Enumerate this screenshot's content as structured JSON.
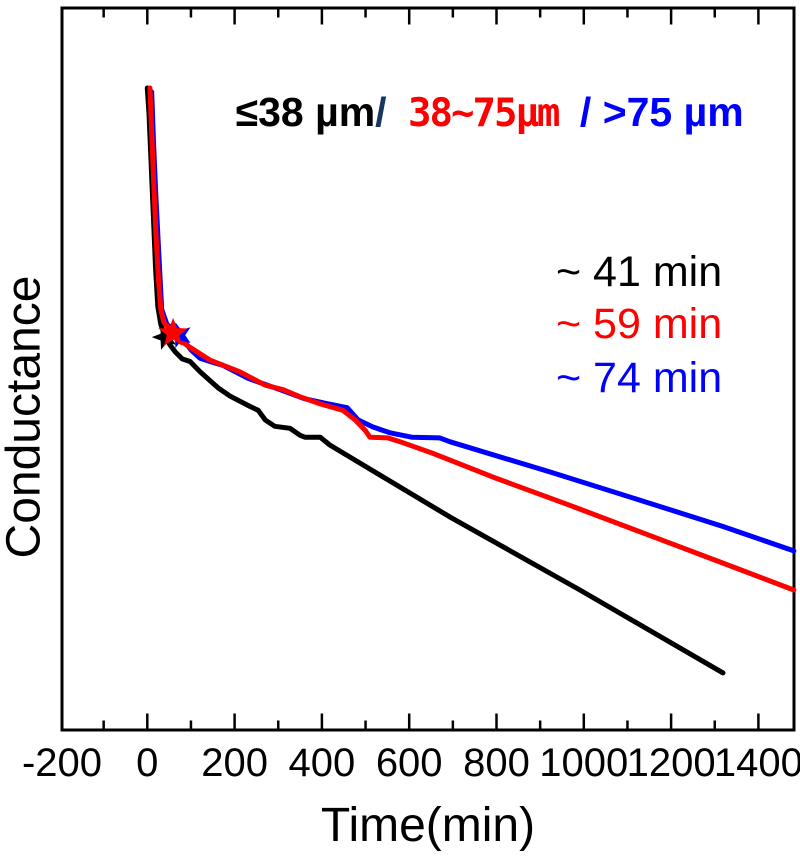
{
  "title": {
    "segments": [
      {
        "text": "≤38 µm",
        "color": "#000000"
      },
      {
        "text": "/",
        "color": "#17375e"
      },
      {
        "text": " 38~75µm ",
        "color": "#ff0000"
      },
      {
        "text": "/ ",
        "color": "#0000ff"
      },
      {
        "text": ">75 µm",
        "color": "#0000ff"
      }
    ]
  },
  "annotations": [
    {
      "text": "~ 41 min",
      "color": "#000000"
    },
    {
      "text": "~ 59 min",
      "color": "#ff0000"
    },
    {
      "text": "~ 74 min",
      "color": "#0000ff"
    }
  ],
  "chart_data": {
    "type": "line",
    "title": "≤38 µm/ 38~75µm / >75 µm",
    "xlabel": "Time(min)",
    "ylabel": "Conductance",
    "xlim": [
      -195,
      1482
    ],
    "ylim": [
      0,
      1.125
    ],
    "y_units": "normalized (no y ticks shown)",
    "grid": false,
    "x_ticks_major": [
      -200,
      0,
      200,
      400,
      600,
      800,
      1000,
      1200,
      1400
    ],
    "x_ticks_minor": [
      -100,
      100,
      300,
      500,
      700,
      900,
      1100,
      1300
    ],
    "series": [
      {
        "name": "≤38 µm",
        "color": "#000000",
        "annotation": "~ 41 min",
        "star": {
          "t": 41,
          "c": 0.612,
          "rotation": -90
        },
        "points": [
          [
            0,
            1.0
          ],
          [
            4,
            0.96
          ],
          [
            9,
            0.88
          ],
          [
            14,
            0.8
          ],
          [
            19,
            0.718
          ],
          [
            24,
            0.66
          ],
          [
            31,
            0.632
          ],
          [
            41,
            0.612
          ],
          [
            52,
            0.6
          ],
          [
            64,
            0.589
          ],
          [
            80,
            0.578
          ],
          [
            98,
            0.574
          ],
          [
            121,
            0.558
          ],
          [
            162,
            0.533
          ],
          [
            190,
            0.52
          ],
          [
            235,
            0.504
          ],
          [
            254,
            0.498
          ],
          [
            270,
            0.483
          ],
          [
            292,
            0.473
          ],
          [
            327,
            0.47
          ],
          [
            350,
            0.459
          ],
          [
            361,
            0.456
          ],
          [
            396,
            0.456
          ],
          [
            418,
            0.444
          ],
          [
            693,
            0.332
          ],
          [
            991,
            0.218
          ],
          [
            1319,
            0.089
          ]
        ]
      },
      {
        "name": "38~75µm",
        "color": "#ff0000",
        "annotation": "~ 59 min",
        "star": {
          "t": 59,
          "c": 0.618,
          "rotation": 0
        },
        "points": [
          [
            6,
            1.0
          ],
          [
            10,
            0.93
          ],
          [
            15,
            0.85
          ],
          [
            20,
            0.77
          ],
          [
            26,
            0.7
          ],
          [
            31,
            0.655
          ],
          [
            38,
            0.635
          ],
          [
            59,
            0.618
          ],
          [
            75,
            0.607
          ],
          [
            98,
            0.596
          ],
          [
            144,
            0.576
          ],
          [
            212,
            0.558
          ],
          [
            270,
            0.537
          ],
          [
            311,
            0.53
          ],
          [
            350,
            0.519
          ],
          [
            396,
            0.508
          ],
          [
            448,
            0.498
          ],
          [
            476,
            0.483
          ],
          [
            499,
            0.467
          ],
          [
            510,
            0.456
          ],
          [
            551,
            0.455
          ],
          [
            579,
            0.449
          ],
          [
            654,
            0.431
          ],
          [
            792,
            0.394
          ],
          [
            968,
            0.35
          ],
          [
            1147,
            0.304
          ],
          [
            1319,
            0.26
          ],
          [
            1481,
            0.218
          ]
        ]
      },
      {
        "name": ">75 µm",
        "color": "#0000ff",
        "annotation": "~ 74 min",
        "star": {
          "t": 74,
          "c": 0.615,
          "rotation": -90
        },
        "points": [
          [
            10,
            0.994
          ],
          [
            14,
            0.92
          ],
          [
            19,
            0.84
          ],
          [
            25,
            0.76
          ],
          [
            33,
            0.655
          ],
          [
            45,
            0.632
          ],
          [
            74,
            0.615
          ],
          [
            100,
            0.592
          ],
          [
            121,
            0.579
          ],
          [
            148,
            0.573
          ],
          [
            173,
            0.568
          ],
          [
            230,
            0.548
          ],
          [
            304,
            0.53
          ],
          [
            360,
            0.516
          ],
          [
            407,
            0.509
          ],
          [
            458,
            0.502
          ],
          [
            483,
            0.483
          ],
          [
            517,
            0.472
          ],
          [
            556,
            0.463
          ],
          [
            606,
            0.456
          ],
          [
            670,
            0.455
          ],
          [
            693,
            0.449
          ],
          [
            922,
            0.402
          ],
          [
            1147,
            0.354
          ],
          [
            1319,
            0.317
          ],
          [
            1481,
            0.279
          ]
        ]
      }
    ]
  }
}
